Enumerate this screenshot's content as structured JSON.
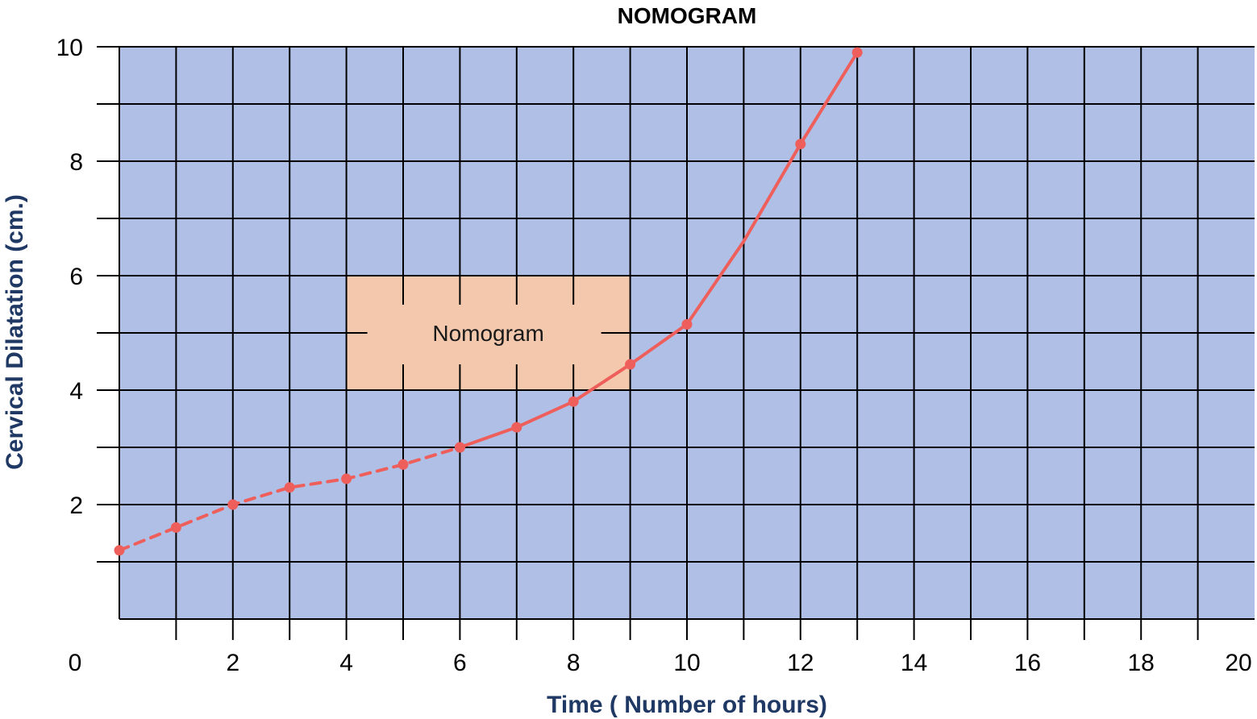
{
  "chart_data": {
    "type": "line",
    "title": "NOMOGRAM",
    "xlabel": "Time ( Number of hours)",
    "ylabel": "Cervical Dilatation (cm.)",
    "xlim": [
      0,
      20
    ],
    "ylim": [
      0,
      10
    ],
    "x_ticks": [
      "0",
      "2",
      "4",
      "6",
      "8",
      "10",
      "12",
      "14",
      "16",
      "18",
      "20"
    ],
    "y_ticks": [
      "2",
      "4",
      "6",
      "8",
      "10"
    ],
    "grid": true,
    "plot_background": "#afbfe6",
    "grid_color": "#000000",
    "line_color": "#ee5f5b",
    "title_color": "#000000",
    "axis_label_color": "#1f3864",
    "nomogram_region": {
      "label": "Nomogram",
      "x_range": [
        4,
        9
      ],
      "y_range": [
        4,
        6
      ],
      "fill": "#f4c8ad"
    },
    "series": [
      {
        "style": "dashed",
        "x": [
          0,
          1,
          2,
          3,
          4,
          5,
          6
        ],
        "y": [
          1.2,
          1.6,
          2.0,
          2.3,
          2.45,
          2.7,
          3.0
        ]
      },
      {
        "style": "solid",
        "x": [
          6,
          7,
          8,
          9,
          10,
          11,
          12,
          13
        ],
        "y": [
          3.0,
          3.35,
          3.8,
          4.45,
          5.15,
          6.6,
          8.3,
          9.9
        ],
        "markers_at": [
          6,
          7,
          8,
          9,
          10,
          12,
          13
        ]
      }
    ]
  }
}
